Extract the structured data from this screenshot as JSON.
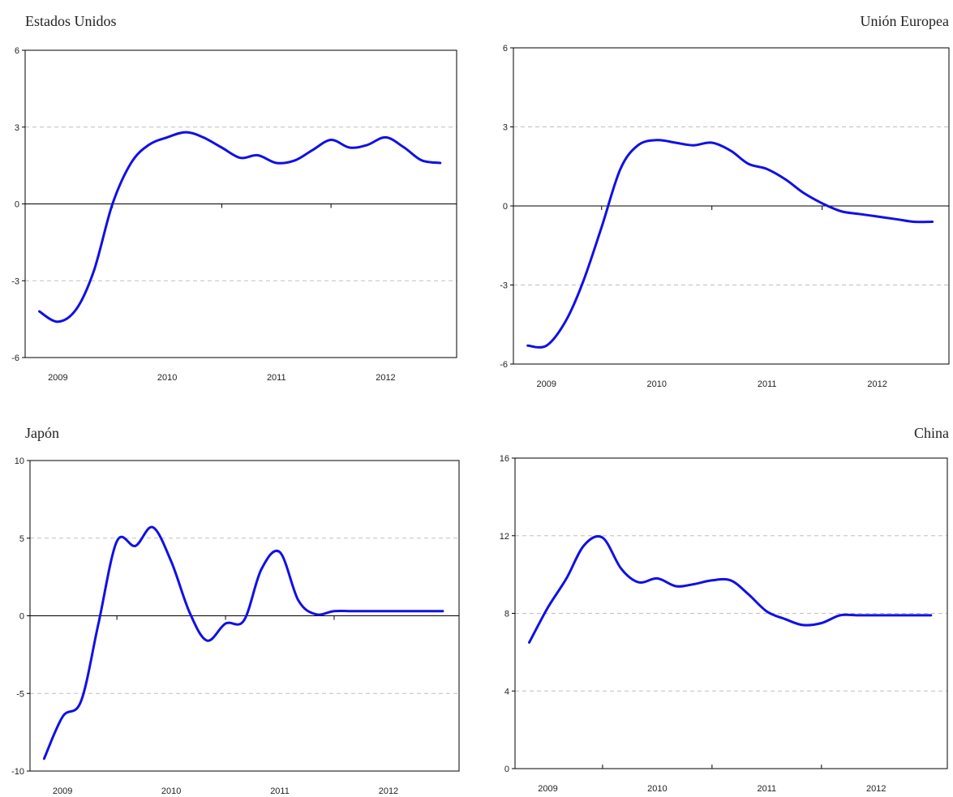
{
  "colors": {
    "series": "#1010e6",
    "axis": "#000000",
    "grid": "#bfbfbf"
  },
  "chart_data": [
    {
      "type": "line",
      "title": "Estados Unidos",
      "title_align": "left",
      "x_ticks": [
        "2009",
        "2010",
        "2011",
        "2012"
      ],
      "ylim": [
        -6,
        6
      ],
      "y_ticks": [
        "6",
        "3",
        "0",
        "-3",
        "-6"
      ],
      "grid": "horizontal dashed",
      "series": [
        {
          "x": [
            2008.83,
            2009.0,
            2009.17,
            2009.33,
            2009.5,
            2009.67,
            2009.83,
            2010.0,
            2010.17,
            2010.33,
            2010.5,
            2010.67,
            2010.83,
            2011.0,
            2011.17,
            2011.33,
            2011.5,
            2011.67,
            2011.83,
            2012.0,
            2012.17,
            2012.33,
            2012.5
          ],
          "values": [
            -4.2,
            -4.6,
            -4.1,
            -2.6,
            0.0,
            1.6,
            2.3,
            2.6,
            2.8,
            2.6,
            2.2,
            1.8,
            1.9,
            1.6,
            1.7,
            2.1,
            2.5,
            2.2,
            2.3,
            2.6,
            2.2,
            1.7,
            1.6
          ]
        }
      ]
    },
    {
      "type": "line",
      "title": "Unión Europea",
      "title_align": "right",
      "x_ticks": [
        "2009",
        "2010",
        "2011",
        "2012"
      ],
      "ylim": [
        -6,
        6
      ],
      "y_ticks": [
        "6",
        "3",
        "0",
        "-3",
        "-6"
      ],
      "grid": "horizontal dashed",
      "series": [
        {
          "x": [
            2008.83,
            2009.0,
            2009.17,
            2009.33,
            2009.5,
            2009.67,
            2009.83,
            2010.0,
            2010.17,
            2010.33,
            2010.5,
            2010.67,
            2010.83,
            2011.0,
            2011.17,
            2011.33,
            2011.5,
            2011.67,
            2011.83,
            2012.0,
            2012.17,
            2012.33,
            2012.5
          ],
          "values": [
            -5.3,
            -5.3,
            -4.4,
            -2.9,
            -0.8,
            1.4,
            2.3,
            2.5,
            2.4,
            2.3,
            2.4,
            2.1,
            1.6,
            1.4,
            1.0,
            0.5,
            0.1,
            -0.2,
            -0.3,
            -0.4,
            -0.5,
            -0.6,
            -0.6
          ]
        }
      ]
    },
    {
      "type": "line",
      "title": "Japón",
      "title_align": "left",
      "x_ticks": [
        "2009",
        "2010",
        "2011",
        "2012"
      ],
      "ylim": [
        -10,
        10
      ],
      "y_ticks": [
        "10",
        "5",
        "0",
        "-5",
        "-10"
      ],
      "grid": "horizontal dashed",
      "series": [
        {
          "x": [
            2008.83,
            2009.0,
            2009.17,
            2009.33,
            2009.5,
            2009.67,
            2009.83,
            2010.0,
            2010.17,
            2010.33,
            2010.5,
            2010.67,
            2010.83,
            2011.0,
            2011.17,
            2011.33,
            2011.5,
            2011.67,
            2011.83,
            2012.0,
            2012.17,
            2012.33,
            2012.5
          ],
          "values": [
            -9.2,
            -6.5,
            -5.5,
            -0.5,
            4.8,
            4.5,
            5.7,
            3.5,
            0.2,
            -1.6,
            -0.5,
            -0.3,
            3.0,
            4.1,
            1.0,
            0.1,
            0.3,
            0.3,
            0.3,
            0.3,
            0.3,
            0.3,
            0.3
          ]
        }
      ]
    },
    {
      "type": "line",
      "title": "China",
      "title_align": "right",
      "x_ticks": [
        "2009",
        "2010",
        "2011",
        "2012"
      ],
      "ylim": [
        0,
        16
      ],
      "y_ticks": [
        "16",
        "12",
        "8",
        "4",
        "0"
      ],
      "grid": "horizontal dashed",
      "series": [
        {
          "x": [
            2008.83,
            2009.0,
            2009.17,
            2009.33,
            2009.5,
            2009.67,
            2009.83,
            2010.0,
            2010.17,
            2010.33,
            2010.5,
            2010.67,
            2010.83,
            2011.0,
            2011.17,
            2011.33,
            2011.5,
            2011.67,
            2011.83,
            2012.0,
            2012.17,
            2012.33,
            2012.5
          ],
          "values": [
            6.5,
            8.3,
            9.8,
            11.5,
            11.9,
            10.3,
            9.6,
            9.8,
            9.4,
            9.5,
            9.7,
            9.7,
            9.0,
            8.1,
            7.7,
            7.4,
            7.5,
            7.9,
            7.9,
            7.9,
            7.9,
            7.9,
            7.9
          ]
        }
      ]
    }
  ]
}
